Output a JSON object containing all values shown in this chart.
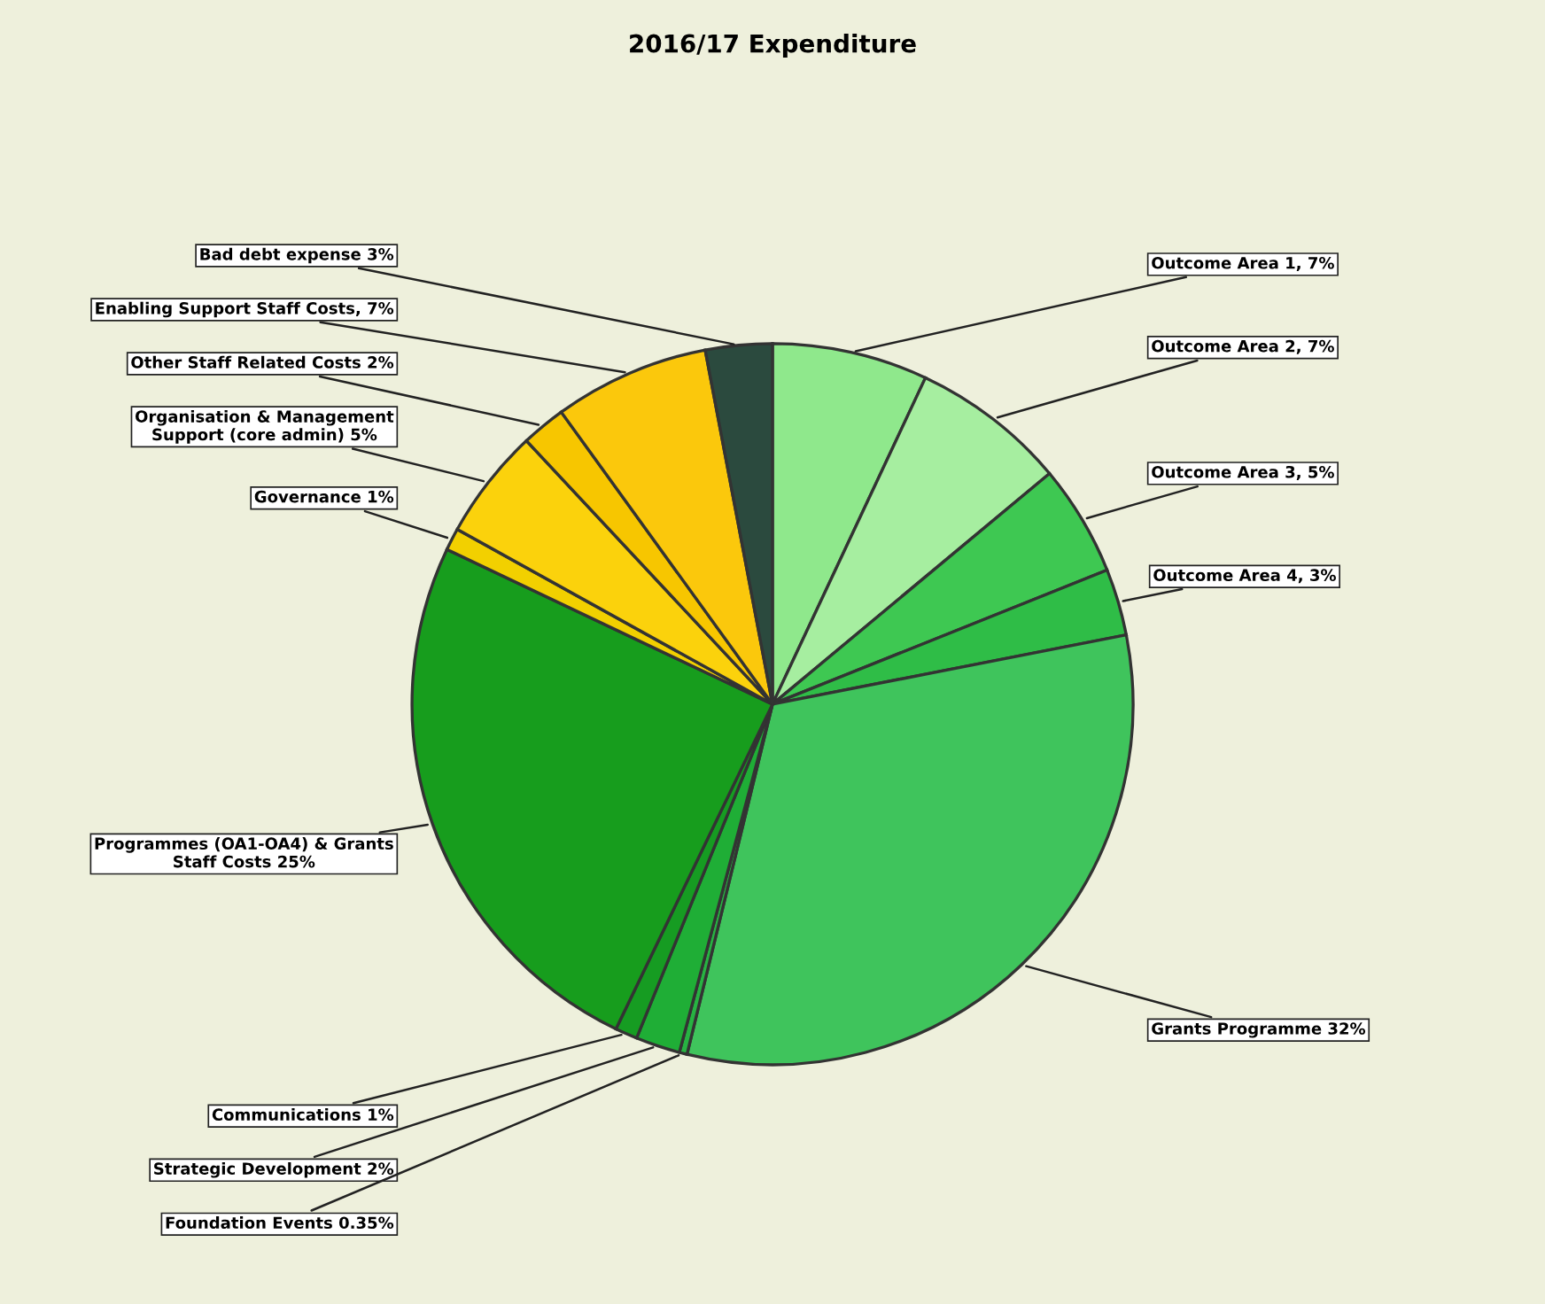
{
  "chart_data": {
    "type": "pie",
    "title": "2016/17 Expenditure",
    "categories": [
      "Outcome Area 1, 7%",
      "Outcome Area 2, 7%",
      "Outcome Area 3, 5%",
      "Outcome Area 4, 3%",
      "Grants Programme 32%",
      "Foundation Events 0.35%",
      "Strategic Development 2%",
      "Communications 1%",
      "Programmes (OA1-OA4) & Grants\nStaff Costs 25%",
      "Governance 1%",
      "Organisation & Management\nSupport (core admin) 5%",
      "Other Staff Related Costs 2%",
      "Enabling Support Staff Costs, 7%",
      "Bad debt expense 3%"
    ],
    "values": [
      7,
      7,
      5,
      3,
      32,
      0.35,
      2,
      1,
      25,
      1,
      5,
      2,
      7,
      3
    ],
    "colors": [
      "#8fe88c",
      "#a6eea0",
      "#3ec852",
      "#2fbd47",
      "#3fc45c",
      "#27b342",
      "#1fae36",
      "#169c22",
      "#179d1d",
      "#f2d000",
      "#fbd20c",
      "#f7c600",
      "#fbc80c",
      "#2b4a3e"
    ]
  }
}
